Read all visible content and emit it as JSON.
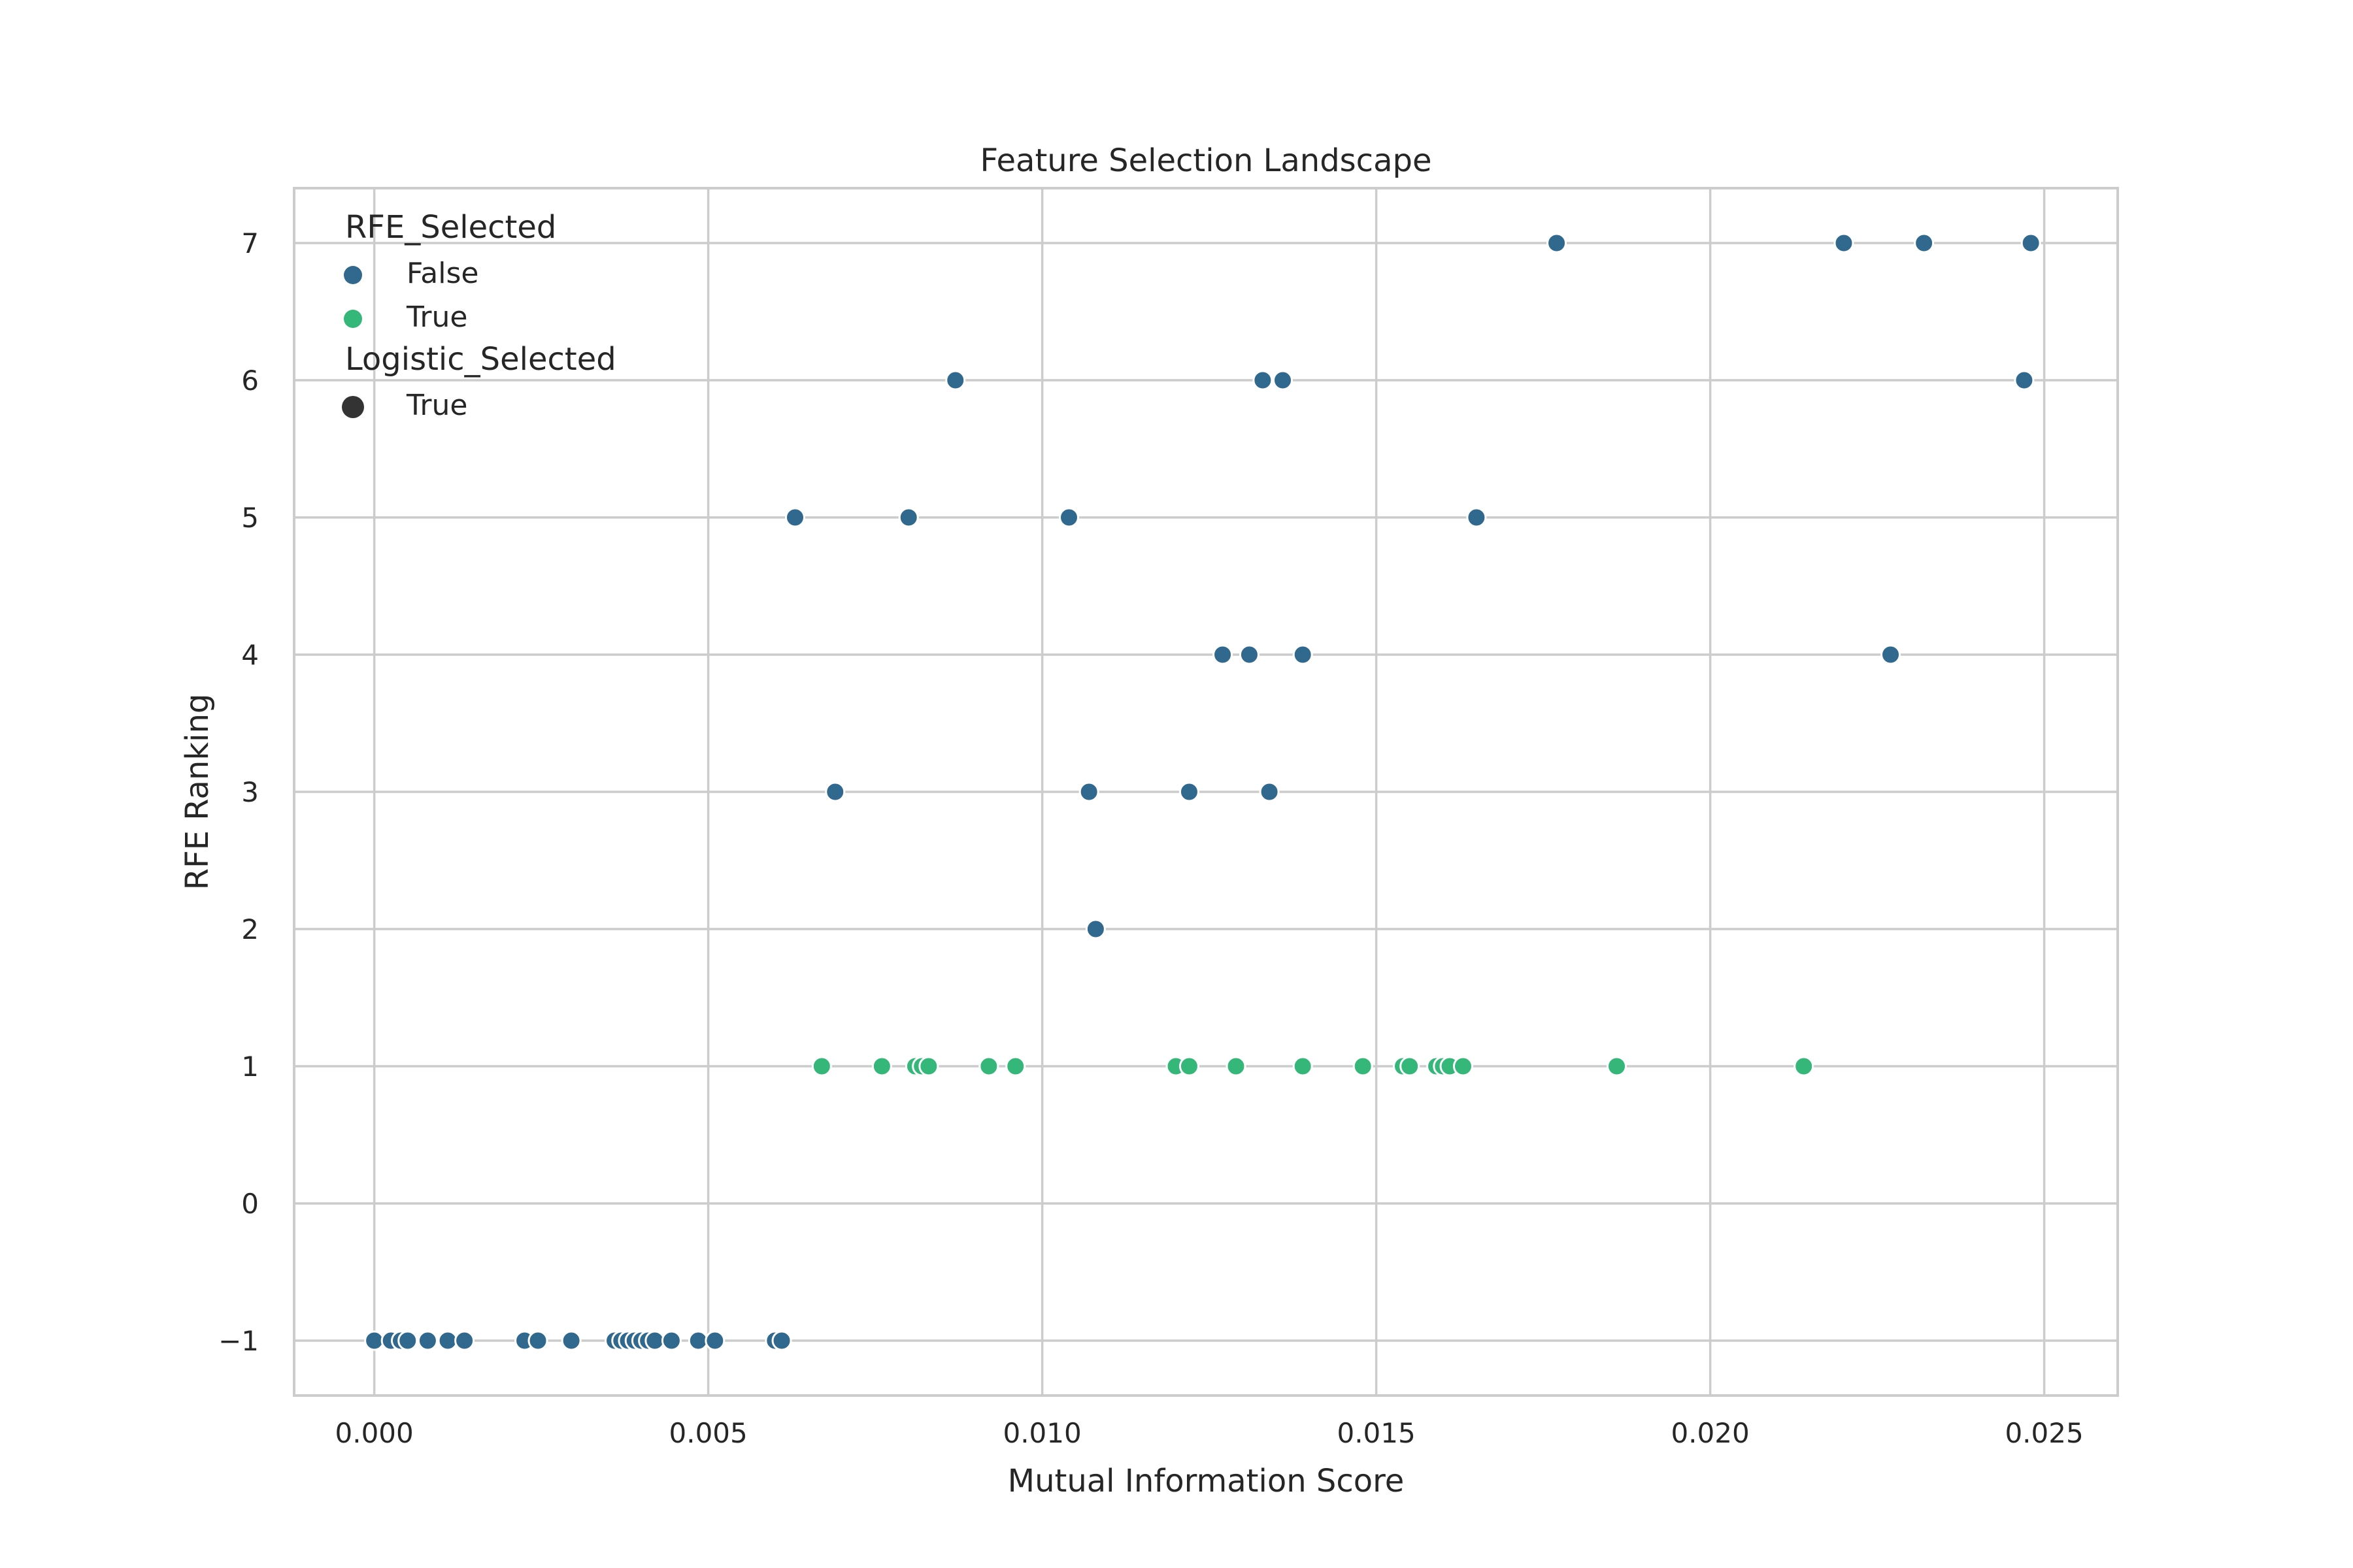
{
  "chart_data": {
    "type": "scatter",
    "title": "Feature Selection Landscape",
    "xlabel": "Mutual Information Score",
    "ylabel": "RFE Ranking",
    "xlim": [
      -0.0012,
      0.0261
    ],
    "ylim": [
      -1.4,
      7.4
    ],
    "xticks": [
      0.0,
      0.005,
      0.01,
      0.015,
      0.02,
      0.025
    ],
    "xtick_labels": [
      "0.000",
      "0.005",
      "0.010",
      "0.015",
      "0.020",
      "0.025"
    ],
    "yticks": [
      -1,
      0,
      1,
      2,
      3,
      4,
      5,
      6,
      7
    ],
    "ytick_labels": [
      "−1",
      "0",
      "1",
      "2",
      "3",
      "4",
      "5",
      "6",
      "7"
    ],
    "grid": true,
    "legend": {
      "placement": "top-left",
      "hue_title": "RFE_Selected",
      "hue_entries": [
        {
          "label": "False",
          "color": "#31688e"
        },
        {
          "label": "True",
          "color": "#35b779"
        }
      ],
      "style_title": "Logistic_Selected",
      "style_entries": [
        {
          "label": "True",
          "color": "#333333"
        }
      ]
    },
    "series": [
      {
        "name": "False",
        "color": "#31688e",
        "points": [
          [
            0.0,
            -1
          ],
          [
            0.00025,
            -1
          ],
          [
            0.0004,
            -1
          ],
          [
            0.0005,
            -1
          ],
          [
            0.0008,
            -1
          ],
          [
            0.0011,
            -1
          ],
          [
            0.00135,
            -1
          ],
          [
            0.00225,
            -1
          ],
          [
            0.00245,
            -1
          ],
          [
            0.00295,
            -1
          ],
          [
            0.0036,
            -1
          ],
          [
            0.0037,
            -1
          ],
          [
            0.0038,
            -1
          ],
          [
            0.0039,
            -1
          ],
          [
            0.004,
            -1
          ],
          [
            0.0041,
            -1
          ],
          [
            0.0042,
            -1
          ],
          [
            0.00445,
            -1
          ],
          [
            0.00485,
            -1
          ],
          [
            0.0051,
            -1
          ],
          [
            0.006,
            -1
          ],
          [
            0.0061,
            -1
          ],
          [
            0.0108,
            2
          ],
          [
            0.0069,
            3
          ],
          [
            0.0107,
            3
          ],
          [
            0.0122,
            3
          ],
          [
            0.0134,
            3
          ],
          [
            0.0127,
            4
          ],
          [
            0.0131,
            4
          ],
          [
            0.0139,
            4
          ],
          [
            0.0227,
            4
          ],
          [
            0.0063,
            5
          ],
          [
            0.008,
            5
          ],
          [
            0.0104,
            5
          ],
          [
            0.0165,
            5
          ],
          [
            0.0087,
            6
          ],
          [
            0.0133,
            6
          ],
          [
            0.0136,
            6
          ],
          [
            0.0247,
            6
          ],
          [
            0.0177,
            7
          ],
          [
            0.022,
            7
          ],
          [
            0.0232,
            7
          ],
          [
            0.0248,
            7
          ]
        ]
      },
      {
        "name": "True",
        "color": "#35b779",
        "points": [
          [
            0.0067,
            1
          ],
          [
            0.0076,
            1
          ],
          [
            0.0081,
            1
          ],
          [
            0.0082,
            1
          ],
          [
            0.0083,
            1
          ],
          [
            0.0092,
            1
          ],
          [
            0.0096,
            1
          ],
          [
            0.012,
            1
          ],
          [
            0.0122,
            1
          ],
          [
            0.0129,
            1
          ],
          [
            0.0139,
            1
          ],
          [
            0.0148,
            1
          ],
          [
            0.0154,
            1
          ],
          [
            0.0155,
            1
          ],
          [
            0.0159,
            1
          ],
          [
            0.016,
            1
          ],
          [
            0.0161,
            1
          ],
          [
            0.0163,
            1
          ],
          [
            0.0186,
            1
          ],
          [
            0.0214,
            1
          ]
        ]
      }
    ]
  }
}
